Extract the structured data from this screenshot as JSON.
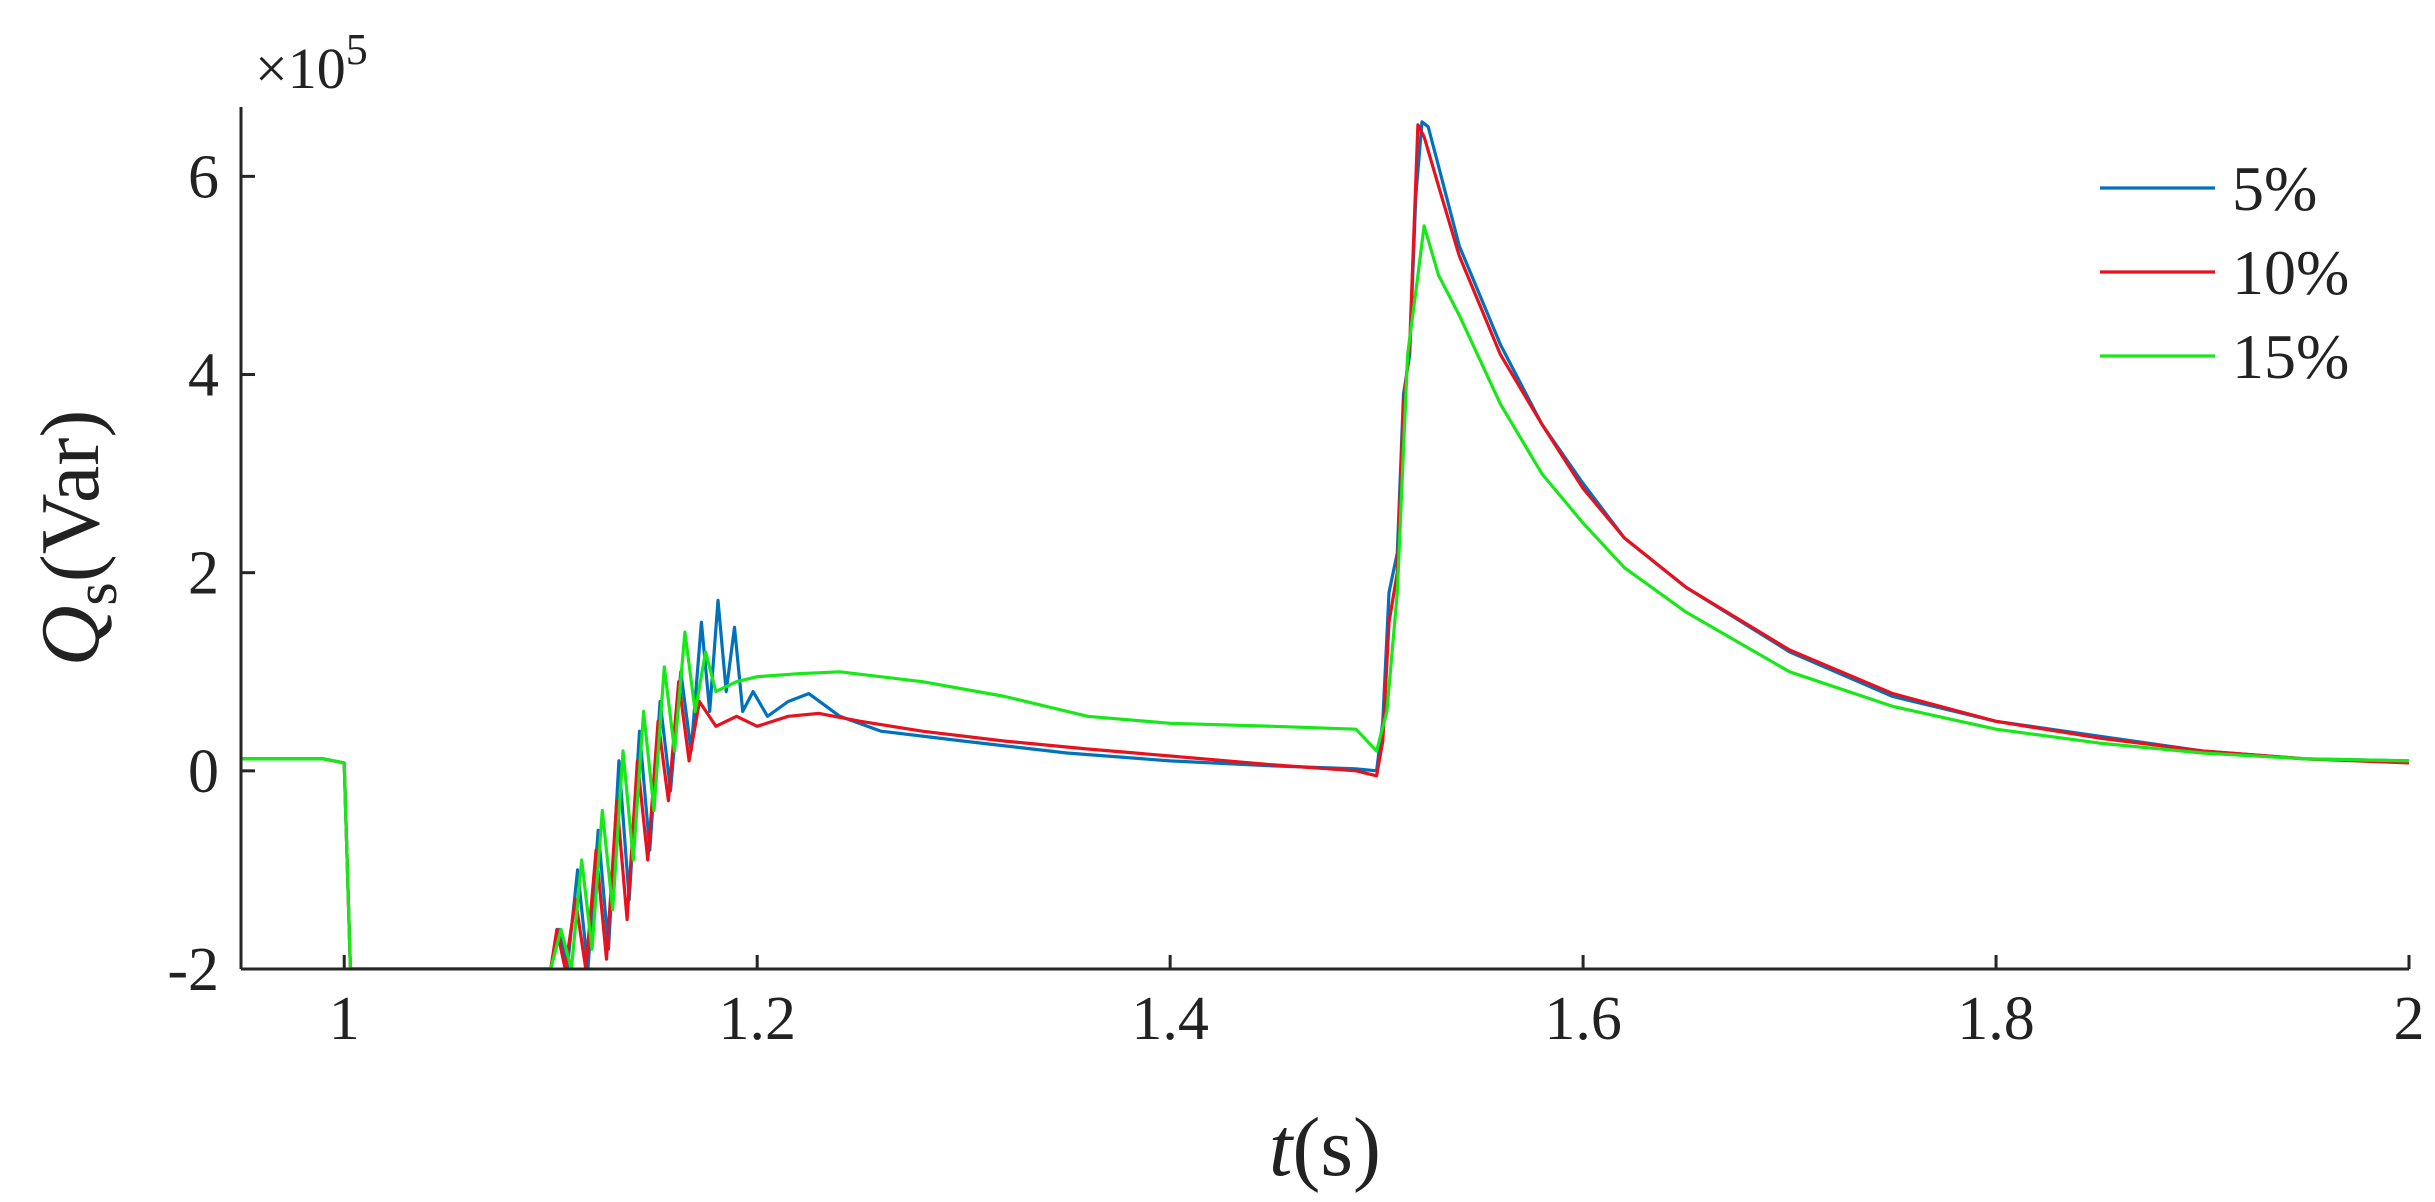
{
  "chart_data": {
    "type": "line",
    "xlabel": {
      "italic": "t",
      "rest": "(s)"
    },
    "ylabel": {
      "italic": "Q",
      "subscript": "s",
      "rest": "(Var)"
    },
    "y_exponent": {
      "prefix": "×10",
      "power": "5"
    },
    "xlim": [
      0.95,
      2.0
    ],
    "ylim": [
      -2,
      6.7
    ],
    "x_ticks": [
      1,
      1.2,
      1.4,
      1.6,
      1.8,
      2
    ],
    "x_tick_labels": [
      "1",
      "1.2",
      "1.4",
      "1.6",
      "1.8",
      "2"
    ],
    "y_ticks": [
      -2,
      0,
      2,
      4,
      6
    ],
    "y_tick_labels": [
      "-2",
      "0",
      "2",
      "4",
      "6"
    ],
    "grid": false,
    "legend_position": "top-right",
    "series": [
      {
        "name": "5%",
        "color": "#0072BD",
        "points": [
          [
            0.95,
            0.12
          ],
          [
            0.99,
            0.12
          ],
          [
            1.0,
            0.08
          ],
          [
            1.003,
            -2.0
          ],
          [
            1.1,
            -2.0
          ],
          [
            1.104,
            -1.6
          ],
          [
            1.108,
            -2.0
          ],
          [
            1.113,
            -1.0
          ],
          [
            1.118,
            -2.0
          ],
          [
            1.123,
            -0.6
          ],
          [
            1.128,
            -1.8
          ],
          [
            1.133,
            0.1
          ],
          [
            1.138,
            -1.3
          ],
          [
            1.143,
            0.4
          ],
          [
            1.148,
            -0.8
          ],
          [
            1.153,
            0.7
          ],
          [
            1.158,
            -0.2
          ],
          [
            1.163,
            1.0
          ],
          [
            1.168,
            0.2
          ],
          [
            1.173,
            1.5
          ],
          [
            1.177,
            0.6
          ],
          [
            1.181,
            1.72
          ],
          [
            1.185,
            0.8
          ],
          [
            1.189,
            1.45
          ],
          [
            1.193,
            0.6
          ],
          [
            1.198,
            0.8
          ],
          [
            1.205,
            0.55
          ],
          [
            1.215,
            0.7
          ],
          [
            1.225,
            0.78
          ],
          [
            1.24,
            0.55
          ],
          [
            1.26,
            0.4
          ],
          [
            1.3,
            0.3
          ],
          [
            1.35,
            0.18
          ],
          [
            1.4,
            0.1
          ],
          [
            1.45,
            0.05
          ],
          [
            1.49,
            0.02
          ],
          [
            1.5,
            0.0
          ],
          [
            1.503,
            0.5
          ],
          [
            1.506,
            1.8
          ],
          [
            1.51,
            2.2
          ],
          [
            1.513,
            3.8
          ],
          [
            1.516,
            4.2
          ],
          [
            1.519,
            5.8
          ],
          [
            1.522,
            6.55
          ],
          [
            1.525,
            6.5
          ],
          [
            1.53,
            6.1
          ],
          [
            1.54,
            5.3
          ],
          [
            1.56,
            4.3
          ],
          [
            1.58,
            3.5
          ],
          [
            1.6,
            2.9
          ],
          [
            1.62,
            2.35
          ],
          [
            1.65,
            1.85
          ],
          [
            1.7,
            1.2
          ],
          [
            1.75,
            0.75
          ],
          [
            1.8,
            0.5
          ],
          [
            1.85,
            0.35
          ],
          [
            1.9,
            0.2
          ],
          [
            1.95,
            0.12
          ],
          [
            2.0,
            0.1
          ]
        ]
      },
      {
        "name": "10%",
        "color": "#E8111E",
        "points": [
          [
            0.95,
            0.12
          ],
          [
            0.99,
            0.12
          ],
          [
            1.0,
            0.08
          ],
          [
            1.003,
            -2.0
          ],
          [
            1.1,
            -2.0
          ],
          [
            1.103,
            -1.6
          ],
          [
            1.107,
            -2.0
          ],
          [
            1.112,
            -1.3
          ],
          [
            1.117,
            -2.0
          ],
          [
            1.122,
            -0.8
          ],
          [
            1.127,
            -1.9
          ],
          [
            1.132,
            -0.3
          ],
          [
            1.137,
            -1.5
          ],
          [
            1.142,
            0.1
          ],
          [
            1.147,
            -0.9
          ],
          [
            1.152,
            0.5
          ],
          [
            1.157,
            -0.3
          ],
          [
            1.162,
            0.9
          ],
          [
            1.167,
            0.1
          ],
          [
            1.172,
            0.7
          ],
          [
            1.18,
            0.45
          ],
          [
            1.19,
            0.55
          ],
          [
            1.2,
            0.45
          ],
          [
            1.215,
            0.55
          ],
          [
            1.23,
            0.58
          ],
          [
            1.25,
            0.5
          ],
          [
            1.28,
            0.4
          ],
          [
            1.32,
            0.3
          ],
          [
            1.36,
            0.22
          ],
          [
            1.4,
            0.15
          ],
          [
            1.45,
            0.06
          ],
          [
            1.49,
            0.0
          ],
          [
            1.5,
            -0.05
          ],
          [
            1.503,
            0.3
          ],
          [
            1.506,
            1.5
          ],
          [
            1.51,
            2.0
          ],
          [
            1.513,
            3.7
          ],
          [
            1.516,
            4.3
          ],
          [
            1.52,
            6.52
          ],
          [
            1.523,
            6.4
          ],
          [
            1.53,
            5.9
          ],
          [
            1.54,
            5.2
          ],
          [
            1.56,
            4.2
          ],
          [
            1.58,
            3.5
          ],
          [
            1.6,
            2.85
          ],
          [
            1.62,
            2.35
          ],
          [
            1.65,
            1.85
          ],
          [
            1.7,
            1.22
          ],
          [
            1.75,
            0.78
          ],
          [
            1.8,
            0.5
          ],
          [
            1.85,
            0.33
          ],
          [
            1.9,
            0.2
          ],
          [
            1.95,
            0.12
          ],
          [
            2.0,
            0.08
          ]
        ]
      },
      {
        "name": "15%",
        "color": "#17E817",
        "points": [
          [
            0.95,
            0.12
          ],
          [
            0.99,
            0.12
          ],
          [
            1.0,
            0.08
          ],
          [
            1.003,
            -2.0
          ],
          [
            1.1,
            -2.0
          ],
          [
            1.105,
            -1.6
          ],
          [
            1.11,
            -2.0
          ],
          [
            1.115,
            -0.9
          ],
          [
            1.12,
            -1.8
          ],
          [
            1.125,
            -0.4
          ],
          [
            1.13,
            -1.4
          ],
          [
            1.135,
            0.2
          ],
          [
            1.14,
            -0.9
          ],
          [
            1.145,
            0.6
          ],
          [
            1.15,
            -0.4
          ],
          [
            1.155,
            1.05
          ],
          [
            1.16,
            0.2
          ],
          [
            1.165,
            1.4
          ],
          [
            1.17,
            0.6
          ],
          [
            1.175,
            1.2
          ],
          [
            1.18,
            0.8
          ],
          [
            1.19,
            0.9
          ],
          [
            1.2,
            0.95
          ],
          [
            1.22,
            0.98
          ],
          [
            1.24,
            1.0
          ],
          [
            1.28,
            0.9
          ],
          [
            1.32,
            0.75
          ],
          [
            1.36,
            0.55
          ],
          [
            1.4,
            0.48
          ],
          [
            1.45,
            0.45
          ],
          [
            1.49,
            0.42
          ],
          [
            1.5,
            0.2
          ],
          [
            1.505,
            0.6
          ],
          [
            1.51,
            1.8
          ],
          [
            1.515,
            4.2
          ],
          [
            1.52,
            5.0
          ],
          [
            1.523,
            5.5
          ],
          [
            1.53,
            5.0
          ],
          [
            1.54,
            4.6
          ],
          [
            1.56,
            3.7
          ],
          [
            1.58,
            3.0
          ],
          [
            1.6,
            2.5
          ],
          [
            1.62,
            2.05
          ],
          [
            1.65,
            1.6
          ],
          [
            1.7,
            1.0
          ],
          [
            1.75,
            0.65
          ],
          [
            1.8,
            0.42
          ],
          [
            1.85,
            0.28
          ],
          [
            1.9,
            0.18
          ],
          [
            1.95,
            0.12
          ],
          [
            2.0,
            0.1
          ]
        ]
      }
    ]
  }
}
